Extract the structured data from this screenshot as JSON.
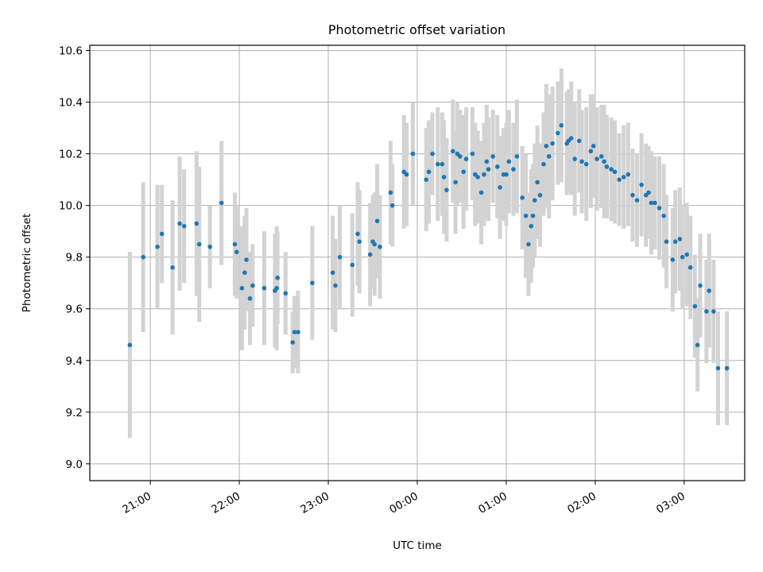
{
  "chart_data": {
    "type": "scatter",
    "title": "Photometric offset variation",
    "xlabel": "UTC time",
    "ylabel": "Photometric offset",
    "xlim_hours": [
      20.32,
      27.68
    ],
    "ylim": [
      8.935,
      10.62
    ],
    "grid": true,
    "x_ticks": [
      {
        "label": "21:00",
        "value": 21
      },
      {
        "label": "22:00",
        "value": 22
      },
      {
        "label": "23:00",
        "value": 23
      },
      {
        "label": "00:00",
        "value": 24
      },
      {
        "label": "01:00",
        "value": 25
      },
      {
        "label": "02:00",
        "value": 26
      },
      {
        "label": "03:00",
        "value": 27
      }
    ],
    "y_ticks": [
      {
        "label": "9.0",
        "value": 9.0
      },
      {
        "label": "9.2",
        "value": 9.2
      },
      {
        "label": "9.4",
        "value": 9.4
      },
      {
        "label": "9.6",
        "value": 9.6
      },
      {
        "label": "9.8",
        "value": 9.8
      },
      {
        "label": "10.0",
        "value": 10.0
      },
      {
        "label": "10.2",
        "value": 10.2
      },
      {
        "label": "10.4",
        "value": 10.4
      },
      {
        "label": "10.6",
        "value": 10.6
      }
    ],
    "colors": {
      "point": "#1f77b4",
      "errorbar": "#d3d3d3",
      "grid": "#b0b0b0"
    },
    "series": [
      {
        "name": "offset",
        "points": [
          [
            20.77,
            9.46,
            0.36
          ],
          [
            20.92,
            9.8,
            0.29
          ],
          [
            21.08,
            9.84,
            0.24
          ],
          [
            21.13,
            9.89,
            0.19
          ],
          [
            21.25,
            9.76,
            0.26
          ],
          [
            21.33,
            9.93,
            0.26
          ],
          [
            21.38,
            9.92,
            0.22
          ],
          [
            21.52,
            9.93,
            0.28
          ],
          [
            21.55,
            9.85,
            0.3
          ],
          [
            21.67,
            9.84,
            0.16
          ],
          [
            21.8,
            10.01,
            0.24
          ],
          [
            21.95,
            9.85,
            0.2
          ],
          [
            21.97,
            9.82,
            0.18
          ],
          [
            22.03,
            9.68,
            0.24
          ],
          [
            22.06,
            9.74,
            0.22
          ],
          [
            22.08,
            9.79,
            0.2
          ],
          [
            22.12,
            9.64,
            0.18
          ],
          [
            22.15,
            9.69,
            0.16
          ],
          [
            22.28,
            9.68,
            0.22
          ],
          [
            22.4,
            9.67,
            0.22
          ],
          [
            22.42,
            9.68,
            0.24
          ],
          [
            22.43,
            9.72,
            0.18
          ],
          [
            22.52,
            9.66,
            0.16
          ],
          [
            22.6,
            9.47,
            0.12
          ],
          [
            22.62,
            9.51,
            0.14
          ],
          [
            22.66,
            9.51,
            0.16
          ],
          [
            22.82,
            9.7,
            0.22
          ],
          [
            23.05,
            9.74,
            0.22
          ],
          [
            23.08,
            9.69,
            0.18
          ],
          [
            23.13,
            9.8,
            0.2
          ],
          [
            23.27,
            9.77,
            0.2
          ],
          [
            23.33,
            9.89,
            0.2
          ],
          [
            23.35,
            9.86,
            0.2
          ],
          [
            23.47,
            9.81,
            0.2
          ],
          [
            23.5,
            9.86,
            0.18
          ],
          [
            23.52,
            9.85,
            0.2
          ],
          [
            23.55,
            9.94,
            0.22
          ],
          [
            23.58,
            9.84,
            0.2
          ],
          [
            23.7,
            10.05,
            0.2
          ],
          [
            23.72,
            10.0,
            0.16
          ],
          [
            23.85,
            10.13,
            0.22
          ],
          [
            23.88,
            10.12,
            0.2
          ],
          [
            23.95,
            10.2,
            0.2
          ],
          [
            24.1,
            10.1,
            0.2
          ],
          [
            24.13,
            10.13,
            0.2
          ],
          [
            24.17,
            10.2,
            0.16
          ],
          [
            24.23,
            10.16,
            0.22
          ],
          [
            24.28,
            10.16,
            0.2
          ],
          [
            24.3,
            10.11,
            0.22
          ],
          [
            24.33,
            10.06,
            0.2
          ],
          [
            24.4,
            10.21,
            0.2
          ],
          [
            24.43,
            10.09,
            0.2
          ],
          [
            24.45,
            10.2,
            0.2
          ],
          [
            24.48,
            10.19,
            0.18
          ],
          [
            24.52,
            10.13,
            0.22
          ],
          [
            24.55,
            10.18,
            0.2
          ],
          [
            24.62,
            10.2,
            0.18
          ],
          [
            24.65,
            10.12,
            0.2
          ],
          [
            24.68,
            10.11,
            0.18
          ],
          [
            24.72,
            10.05,
            0.2
          ],
          [
            24.75,
            10.12,
            0.2
          ],
          [
            24.78,
            10.17,
            0.22
          ],
          [
            24.8,
            10.14,
            0.2
          ],
          [
            24.85,
            10.19,
            0.18
          ],
          [
            24.9,
            10.15,
            0.2
          ],
          [
            24.93,
            10.07,
            0.2
          ],
          [
            24.97,
            10.12,
            0.18
          ],
          [
            25.0,
            10.12,
            0.2
          ],
          [
            25.03,
            10.17,
            0.2
          ],
          [
            25.08,
            10.14,
            0.18
          ],
          [
            25.12,
            10.19,
            0.22
          ],
          [
            25.18,
            10.03,
            0.2
          ],
          [
            25.22,
            9.96,
            0.24
          ],
          [
            25.25,
            9.85,
            0.2
          ],
          [
            25.28,
            9.92,
            0.22
          ],
          [
            25.3,
            9.96,
            0.2
          ],
          [
            25.32,
            10.02,
            0.22
          ],
          [
            25.35,
            10.09,
            0.22
          ],
          [
            25.38,
            10.04,
            0.2
          ],
          [
            25.42,
            10.16,
            0.2
          ],
          [
            25.45,
            10.23,
            0.24
          ],
          [
            25.48,
            10.19,
            0.24
          ],
          [
            25.52,
            10.24,
            0.22
          ],
          [
            25.58,
            10.28,
            0.2
          ],
          [
            25.62,
            10.31,
            0.22
          ],
          [
            25.68,
            10.24,
            0.2
          ],
          [
            25.7,
            10.25,
            0.2
          ],
          [
            25.73,
            10.26,
            0.22
          ],
          [
            25.77,
            10.18,
            0.22
          ],
          [
            25.82,
            10.25,
            0.2
          ],
          [
            25.85,
            10.17,
            0.2
          ],
          [
            25.9,
            10.16,
            0.22
          ],
          [
            25.95,
            10.21,
            0.22
          ],
          [
            25.98,
            10.23,
            0.2
          ],
          [
            26.02,
            10.18,
            0.2
          ],
          [
            26.07,
            10.19,
            0.2
          ],
          [
            26.1,
            10.17,
            0.22
          ],
          [
            26.13,
            10.15,
            0.2
          ],
          [
            26.18,
            10.14,
            0.2
          ],
          [
            26.22,
            10.13,
            0.2
          ],
          [
            26.27,
            10.1,
            0.18
          ],
          [
            26.32,
            10.11,
            0.2
          ],
          [
            26.37,
            10.12,
            0.2
          ],
          [
            26.42,
            10.04,
            0.18
          ],
          [
            26.47,
            10.02,
            0.18
          ],
          [
            26.52,
            10.08,
            0.2
          ],
          [
            26.57,
            10.04,
            0.2
          ],
          [
            26.6,
            10.05,
            0.18
          ],
          [
            26.63,
            10.01,
            0.2
          ],
          [
            26.67,
            10.01,
            0.18
          ],
          [
            26.72,
            9.99,
            0.2
          ],
          [
            26.77,
            9.96,
            0.2
          ],
          [
            26.8,
            9.86,
            0.18
          ],
          [
            26.87,
            9.79,
            0.2
          ],
          [
            26.9,
            9.86,
            0.2
          ],
          [
            26.95,
            9.87,
            0.2
          ],
          [
            26.98,
            9.8,
            0.2
          ],
          [
            27.03,
            9.81,
            0.2
          ],
          [
            27.07,
            9.76,
            0.2
          ],
          [
            27.12,
            9.61,
            0.2
          ],
          [
            27.15,
            9.46,
            0.18
          ],
          [
            27.18,
            9.69,
            0.2
          ],
          [
            27.25,
            9.59,
            0.2
          ],
          [
            27.28,
            9.67,
            0.22
          ],
          [
            27.33,
            9.59,
            0.2
          ],
          [
            27.38,
            9.37,
            0.22
          ],
          [
            27.48,
            9.37,
            0.22
          ]
        ]
      }
    ]
  }
}
